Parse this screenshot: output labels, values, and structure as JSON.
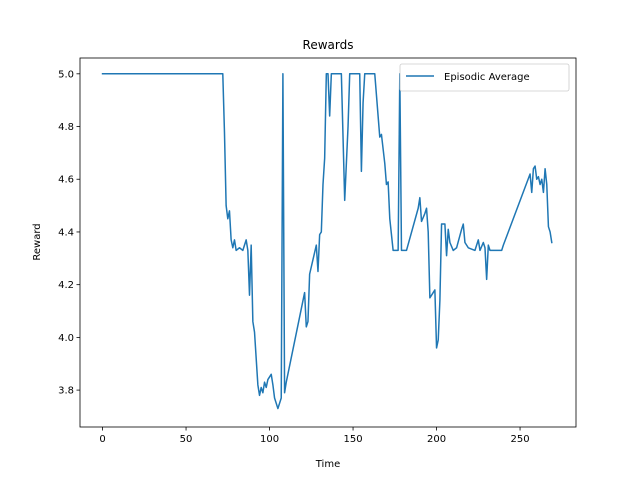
{
  "chart_data": {
    "type": "line",
    "title": "Rewards",
    "xlabel": "Time",
    "ylabel": "Reward",
    "xlim": [
      -13.5,
      283.5
    ],
    "ylim": [
      3.66,
      5.06
    ],
    "xticks": [
      0,
      50,
      100,
      150,
      200,
      250
    ],
    "yticks": [
      3.8,
      4.0,
      4.2,
      4.4,
      4.6,
      4.8,
      5.0
    ],
    "grid": false,
    "legend": "top-right",
    "series": [
      {
        "name": "Episodic Average",
        "color": "#1f77b4",
        "points": [
          [
            0,
            5.0
          ],
          [
            72,
            5.0
          ],
          [
            73,
            4.78
          ],
          [
            74,
            4.5
          ],
          [
            75,
            4.45
          ],
          [
            76,
            4.48
          ],
          [
            77,
            4.37
          ],
          [
            78,
            4.34
          ],
          [
            79,
            4.37
          ],
          [
            80,
            4.33
          ],
          [
            82,
            4.34
          ],
          [
            84,
            4.33
          ],
          [
            86,
            4.37
          ],
          [
            87,
            4.33
          ],
          [
            88,
            4.16
          ],
          [
            89,
            4.35
          ],
          [
            90,
            4.06
          ],
          [
            91,
            4.02
          ],
          [
            93,
            3.82
          ],
          [
            94,
            3.78
          ],
          [
            95,
            3.81
          ],
          [
            96,
            3.79
          ],
          [
            97,
            3.83
          ],
          [
            98,
            3.81
          ],
          [
            99,
            3.84
          ],
          [
            100,
            3.85
          ],
          [
            101,
            3.86
          ],
          [
            102,
            3.82
          ],
          [
            103,
            3.77
          ],
          [
            105,
            3.73
          ],
          [
            107,
            3.77
          ],
          [
            108,
            5.0
          ],
          [
            109,
            3.79
          ],
          [
            110,
            3.83
          ],
          [
            121,
            4.17
          ],
          [
            122,
            4.04
          ],
          [
            123,
            4.06
          ],
          [
            124,
            4.24
          ],
          [
            128,
            4.35
          ],
          [
            129,
            4.25
          ],
          [
            130,
            4.39
          ],
          [
            131,
            4.4
          ],
          [
            132,
            4.58
          ],
          [
            133,
            4.68
          ],
          [
            134,
            5.0
          ],
          [
            135,
            5.0
          ],
          [
            136,
            4.84
          ],
          [
            137,
            5.0
          ],
          [
            143,
            5.0
          ],
          [
            145,
            4.52
          ],
          [
            147,
            4.8
          ],
          [
            148,
            5.0
          ],
          [
            154,
            5.0
          ],
          [
            155,
            4.63
          ],
          [
            156,
            4.89
          ],
          [
            157,
            5.0
          ],
          [
            163,
            5.0
          ],
          [
            166,
            4.76
          ],
          [
            167,
            4.77
          ],
          [
            169,
            4.66
          ],
          [
            170,
            4.58
          ],
          [
            171,
            4.59
          ],
          [
            172,
            4.45
          ],
          [
            174,
            4.33
          ],
          [
            177,
            4.33
          ],
          [
            178,
            5.0
          ],
          [
            179,
            4.33
          ],
          [
            182,
            4.33
          ],
          [
            189,
            4.49
          ],
          [
            190,
            4.53
          ],
          [
            191,
            4.44
          ],
          [
            193,
            4.47
          ],
          [
            194,
            4.49
          ],
          [
            195,
            4.4
          ],
          [
            196,
            4.15
          ],
          [
            198,
            4.17
          ],
          [
            199,
            4.18
          ],
          [
            200,
            3.96
          ],
          [
            201,
            3.99
          ],
          [
            202,
            4.14
          ],
          [
            203,
            4.43
          ],
          [
            205,
            4.43
          ],
          [
            206,
            4.31
          ],
          [
            207,
            4.41
          ],
          [
            208,
            4.36
          ],
          [
            210,
            4.33
          ],
          [
            212,
            4.34
          ],
          [
            215,
            4.41
          ],
          [
            216,
            4.43
          ],
          [
            217,
            4.36
          ],
          [
            219,
            4.34
          ],
          [
            223,
            4.33
          ],
          [
            225,
            4.37
          ],
          [
            226,
            4.33
          ],
          [
            228,
            4.36
          ],
          [
            229,
            4.34
          ],
          [
            230,
            4.22
          ],
          [
            231,
            4.35
          ],
          [
            232,
            4.33
          ],
          [
            239,
            4.33
          ],
          [
            240,
            4.35
          ],
          [
            256,
            4.62
          ],
          [
            257,
            4.55
          ],
          [
            258,
            4.64
          ],
          [
            259,
            4.65
          ],
          [
            260,
            4.6
          ],
          [
            261,
            4.61
          ],
          [
            262,
            4.58
          ],
          [
            263,
            4.6
          ],
          [
            264,
            4.55
          ],
          [
            265,
            4.64
          ],
          [
            266,
            4.58
          ],
          [
            267,
            4.42
          ],
          [
            268,
            4.4
          ],
          [
            269,
            4.36
          ]
        ]
      }
    ]
  }
}
